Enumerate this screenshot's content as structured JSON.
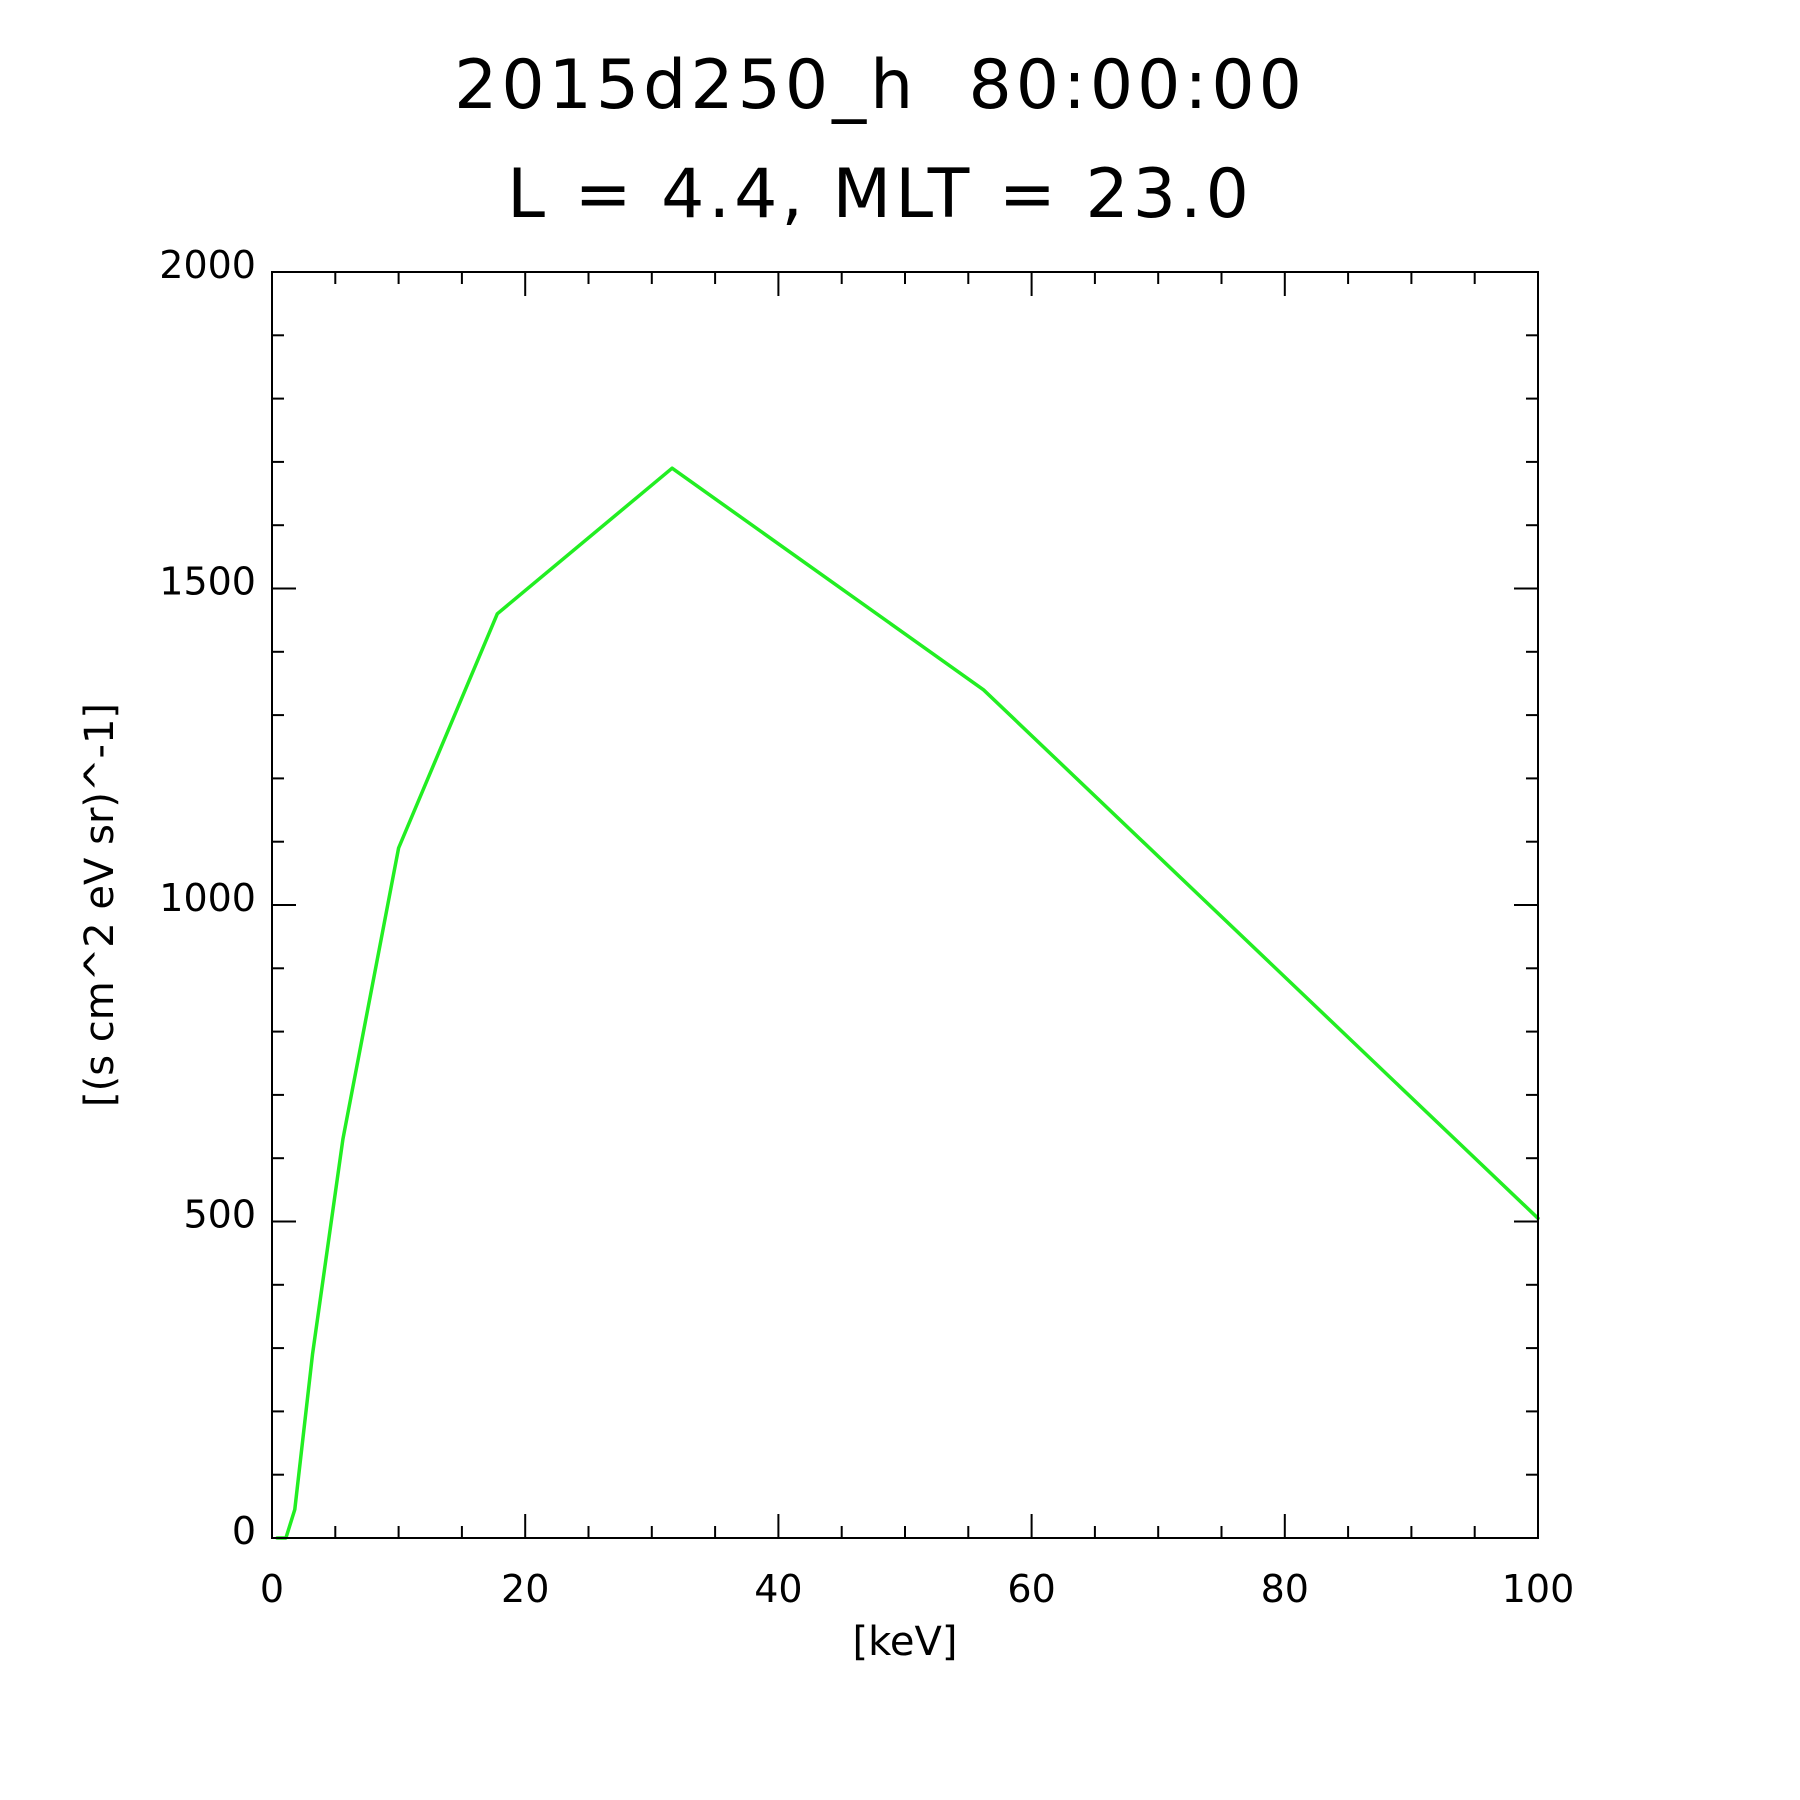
{
  "chart_data": {
    "type": "line",
    "title": "2015d250_h  80:00:00",
    "subtitle": "L = 4.4, MLT = 23.0",
    "xlabel": "[keV]",
    "ylabel": "[(s cm^2 eV sr)^-1]",
    "xlim": [
      0,
      100
    ],
    "ylim": [
      0,
      2000
    ],
    "x_ticks": [
      0,
      20,
      40,
      60,
      80,
      100
    ],
    "x_tick_labels": [
      "0",
      "20",
      "40",
      "60",
      "80",
      "100"
    ],
    "x_minor_step": 5,
    "y_ticks": [
      0,
      500,
      1000,
      1500,
      2000
    ],
    "y_tick_labels": [
      "0",
      "500",
      "1000",
      "1500",
      "2000"
    ],
    "y_minor_step": 100,
    "grid": false,
    "legend": "none",
    "line_color": "#22ee22",
    "series": [
      {
        "x": [
          0.4,
          1.1,
          1.8,
          3.2,
          5.6,
          10.0,
          17.8,
          31.6,
          56.2,
          100.0
        ],
        "y": [
          0,
          0,
          45,
          290,
          630,
          1090,
          1460,
          1690,
          1340,
          505
        ]
      }
    ]
  }
}
